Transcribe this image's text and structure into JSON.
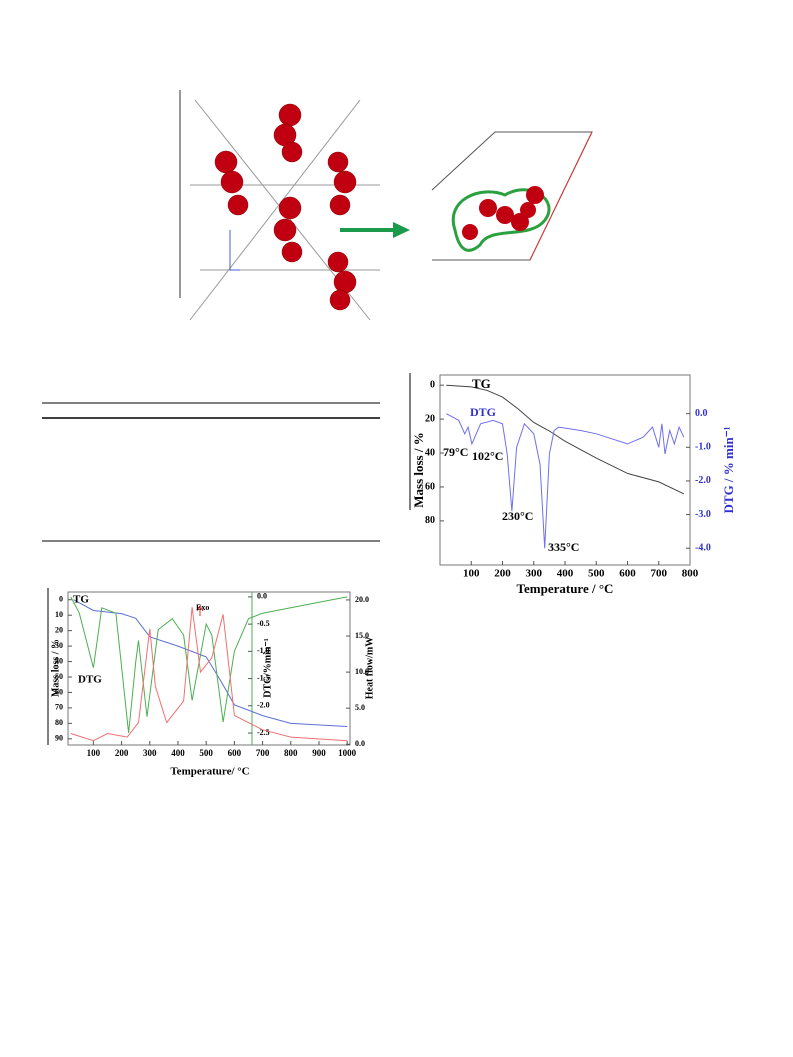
{
  "chart_data": [
    {
      "type": "line",
      "x_label": "Temperature / °C",
      "y_label": "Mass loss / %",
      "y2_label": "DTG / % min⁻¹",
      "annotations": [
        "TG",
        "DTG",
        "79°C",
        "102°C",
        "230°C",
        "335°C"
      ],
      "xlim": [
        0,
        800
      ],
      "xticks": [
        100,
        200,
        300,
        400,
        500,
        600,
        700,
        800
      ],
      "ylim": [
        -6,
        106
      ],
      "y_inverted": true,
      "yticks": [
        0,
        20,
        40,
        60,
        80
      ],
      "y2lim": [
        -4.5,
        1.15
      ],
      "y2ticks": [
        {
          "value": 0,
          "label": "0.0"
        },
        {
          "value": -1,
          "label": "-1.0"
        },
        {
          "value": -2,
          "label": "-2.0"
        },
        {
          "value": -3,
          "label": "-3.0"
        },
        {
          "value": -4,
          "label": "-4.0"
        }
      ],
      "series": [
        {
          "name": "TG",
          "color": "#444444",
          "x": [
            20,
            100,
            150,
            200,
            250,
            300,
            350,
            400,
            500,
            600,
            700,
            780
          ],
          "values": [
            0,
            1,
            3,
            7,
            14,
            22,
            27,
            33,
            43,
            52,
            57,
            64
          ]
        },
        {
          "name": "DTG",
          "color": "#6f6ff0",
          "axis": "y2",
          "x": [
            20,
            60,
            79,
            90,
            102,
            130,
            170,
            200,
            215,
            230,
            245,
            270,
            300,
            320,
            335,
            350,
            365,
            380,
            450,
            500,
            600,
            650,
            680,
            700,
            710,
            720,
            735,
            750,
            765,
            780
          ],
          "values": [
            0,
            -0.2,
            -0.6,
            -0.4,
            -0.9,
            -0.3,
            -0.2,
            -0.3,
            -1.2,
            -2.9,
            -1.0,
            -0.3,
            -0.6,
            -1.5,
            -4.0,
            -1.2,
            -0.5,
            -0.4,
            -0.5,
            -0.6,
            -0.9,
            -0.7,
            -0.4,
            -1.0,
            -0.3,
            -1.2,
            -0.5,
            -0.9,
            -0.4,
            -0.7
          ]
        }
      ]
    },
    {
      "type": "line",
      "x_label": "Temperature/ °C",
      "y_label": "Mass loss / %",
      "y2_label": "DTG/%min⁻¹",
      "y3_label": "Heat flow/mW",
      "annotations": [
        "TG",
        "DTG",
        "Exo"
      ],
      "xlim": [
        10,
        1010
      ],
      "xticks": [
        100,
        200,
        300,
        400,
        500,
        600,
        700,
        800,
        900,
        1000
      ],
      "ylim": [
        -5,
        94
      ],
      "y_inverted": true,
      "yticks": [
        0,
        10,
        20,
        30,
        40,
        50,
        60,
        70,
        80,
        90
      ],
      "y2lim": [
        -2.72,
        0.09
      ],
      "y2ticks": [
        {
          "value": 0,
          "label": "0.0"
        },
        {
          "value": -0.5,
          "label": "-0.5"
        },
        {
          "value": -1,
          "label": "-1.0"
        },
        {
          "value": -1.5,
          "label": "-1.5"
        },
        {
          "value": -2,
          "label": "-2.0"
        },
        {
          "value": -2.5,
          "label": "-2.5"
        }
      ],
      "y3lim": [
        -0.1,
        21.1
      ],
      "y3ticks": [
        {
          "value": 0,
          "label": "0.0"
        },
        {
          "value": 5,
          "label": "5.0"
        },
        {
          "value": 10,
          "label": "10.0"
        },
        {
          "value": 15,
          "label": "15.0"
        },
        {
          "value": 20,
          "label": "20.0"
        }
      ],
      "series": [
        {
          "name": "TG",
          "color": "#5a6fd6",
          "x": [
            30,
            100,
            200,
            250,
            300,
            400,
            500,
            550,
            600,
            700,
            800,
            1000
          ],
          "values": [
            0,
            7,
            9,
            12,
            24,
            30,
            37,
            52,
            68,
            75,
            80,
            82
          ]
        },
        {
          "name": "DTG",
          "color": "#4caf50",
          "axis": "y2",
          "x": [
            20,
            50,
            100,
            130,
            180,
            225,
            250,
            260,
            290,
            330,
            380,
            420,
            450,
            500,
            520,
            560,
            600,
            650,
            700,
            800,
            900,
            1000
          ],
          "values": [
            0,
            -0.3,
            -1.3,
            -0.2,
            -0.3,
            -2.5,
            -1.2,
            -0.8,
            -2.2,
            -0.6,
            -0.4,
            -0.7,
            -1.9,
            -0.5,
            -0.7,
            -2.3,
            -1.0,
            -0.4,
            -0.3,
            -0.2,
            -0.1,
            0
          ]
        },
        {
          "name": "Heat flow",
          "color": "#f07070",
          "axis": "y3",
          "x": [
            20,
            100,
            150,
            220,
            260,
            300,
            320,
            360,
            420,
            450,
            480,
            520,
            560,
            600,
            700,
            800,
            1000
          ],
          "values": [
            1.5,
            0.5,
            1.5,
            1.0,
            3,
            16,
            8,
            3,
            6,
            19,
            10,
            12,
            18,
            4,
            2,
            1,
            0.5
          ]
        }
      ]
    }
  ]
}
